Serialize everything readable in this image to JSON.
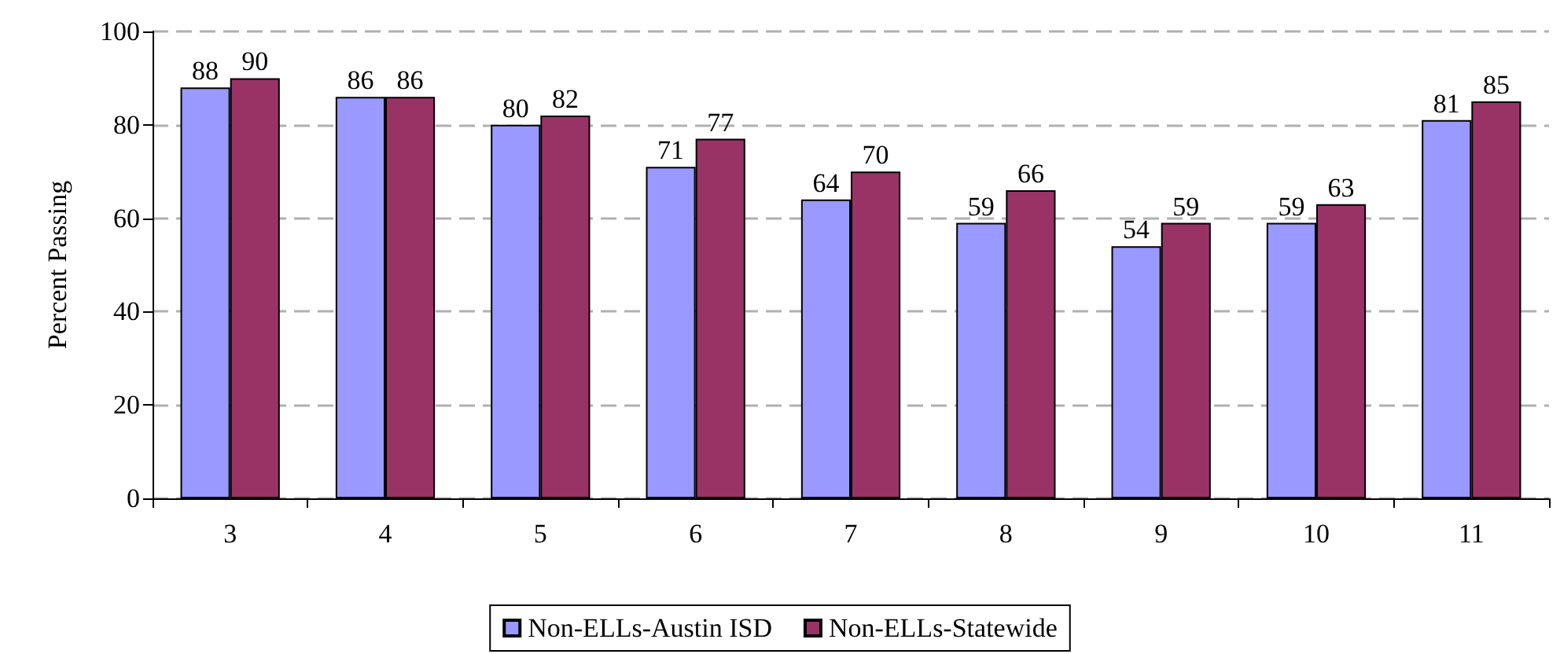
{
  "chart_data": {
    "type": "bar",
    "ylabel": "Percent Passing",
    "categories": [
      "3",
      "4",
      "5",
      "6",
      "7",
      "8",
      "9",
      "10",
      "11"
    ],
    "series": [
      {
        "name": "Non-ELLs-Austin ISD",
        "color": "#9999ff",
        "values": [
          88,
          86,
          80,
          71,
          64,
          59,
          54,
          59,
          81
        ]
      },
      {
        "name": "Non-ELLs-Statewide",
        "color": "#993366",
        "values": [
          90,
          86,
          82,
          77,
          70,
          66,
          59,
          63,
          85
        ]
      }
    ],
    "ylim": [
      0,
      100
    ],
    "yticks": [
      0,
      20,
      40,
      60,
      80,
      100
    ],
    "grid": "y",
    "legend": "bottom",
    "data_labels": true
  }
}
